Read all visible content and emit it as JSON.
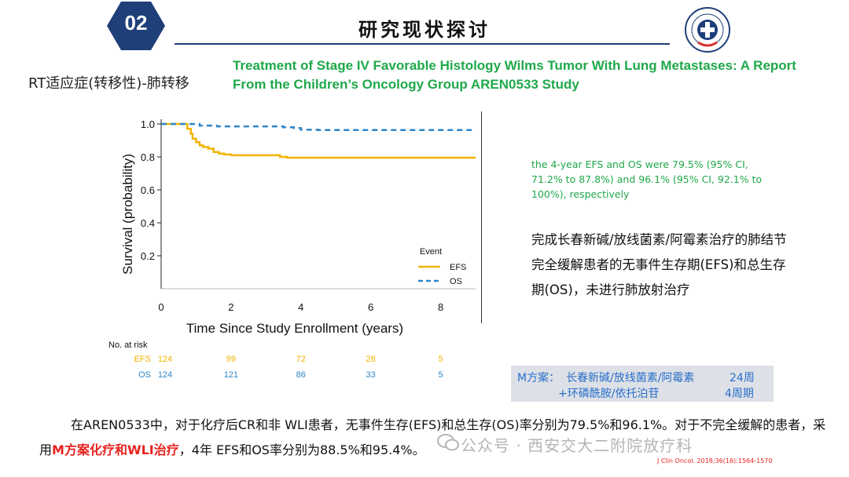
{
  "header": {
    "badge_number": "02",
    "title": "研究现状探讨"
  },
  "section_label": "RT适应症(转移性)-肺转移",
  "paper_title": "Treatment of Stage IV Favorable Histology Wilms Tumor With Lung Metastases: A Report From the Children’s Oncology Group AREN0533 Study",
  "stats_text": "the 4-year EFS and OS were 79.5% (95% CI, 71.2% to 87.8%) and 96.1% (95% CI, 92.1% to 100%), respectively",
  "cn_description": "完成长春新碱/放线菌素/阿霉素治疗的肺结节完全缓解患者的无事件生存期(EFS)和总生存期(OS)，未进行肺放射治疗",
  "regimen": {
    "line1_label": "M方案：",
    "line1_drugs": "长春新碱/放线菌素/阿霉素",
    "line1_duration": "24周",
    "line2_drugs": "+环磷酰胺/依托泊苷",
    "line2_duration": "4周期"
  },
  "bottom": {
    "part1": "在AREN0533中，对于化疗后CR和非 WLI患者，无事件生存(EFS)和总生存(OS)率分别为79.5%和96.1%。对于不完全缓解的患者，采用",
    "highlight": "M方案化疗和WLI治疗",
    "part2": "，4年 EFS和OS率分别为88.5%和95.4%。"
  },
  "watermark": "公众号 · 西安交大二附院放疗科",
  "citation": "J Clin Oncol. 2018;36(16):1564-1570",
  "colors": {
    "efs": "#f0b400",
    "os": "#2e86c8",
    "green": "#1fa84a",
    "red": "#e8231f",
    "navy": "#1f3f7a"
  },
  "chart_data": {
    "type": "line",
    "ylabel": "Survival (probability)",
    "xlabel": "Time Since Study Enrollment (years)",
    "xlim": [
      0,
      9
    ],
    "ylim": [
      0,
      1
    ],
    "xticks": [
      0,
      2,
      4,
      6,
      8
    ],
    "yticks": [
      0.2,
      0.4,
      0.6,
      0.8,
      1.0
    ],
    "legend_title": "Event",
    "legend_position": "bottom-right",
    "series": [
      {
        "name": "EFS",
        "style": "solid",
        "x": [
          0,
          0.6,
          0.75,
          0.85,
          0.9,
          1.0,
          1.1,
          1.2,
          1.35,
          1.5,
          1.65,
          1.8,
          2.0,
          2.5,
          3.0,
          3.4,
          3.6,
          4.0,
          5.0,
          6.0,
          7.0,
          8.0,
          9.0
        ],
        "y": [
          1.0,
          1.0,
          0.97,
          0.94,
          0.91,
          0.89,
          0.87,
          0.86,
          0.85,
          0.83,
          0.82,
          0.815,
          0.81,
          0.81,
          0.81,
          0.8,
          0.795,
          0.795,
          0.795,
          0.795,
          0.795,
          0.795,
          0.795
        ]
      },
      {
        "name": "OS",
        "style": "dashed",
        "x": [
          0,
          0.9,
          1.1,
          1.6,
          3.2,
          3.5,
          3.8,
          4.0,
          4.5,
          6.0,
          8.0,
          9.0
        ],
        "y": [
          1.0,
          1.0,
          0.99,
          0.985,
          0.985,
          0.98,
          0.975,
          0.965,
          0.963,
          0.963,
          0.963,
          0.963
        ]
      }
    ],
    "at_risk": {
      "label": "No. at risk",
      "rows": [
        {
          "name": "EFS",
          "values": [
            124,
            99,
            72,
            28,
            5
          ]
        },
        {
          "name": "OS",
          "values": [
            124,
            121,
            86,
            33,
            5
          ]
        }
      ]
    }
  }
}
